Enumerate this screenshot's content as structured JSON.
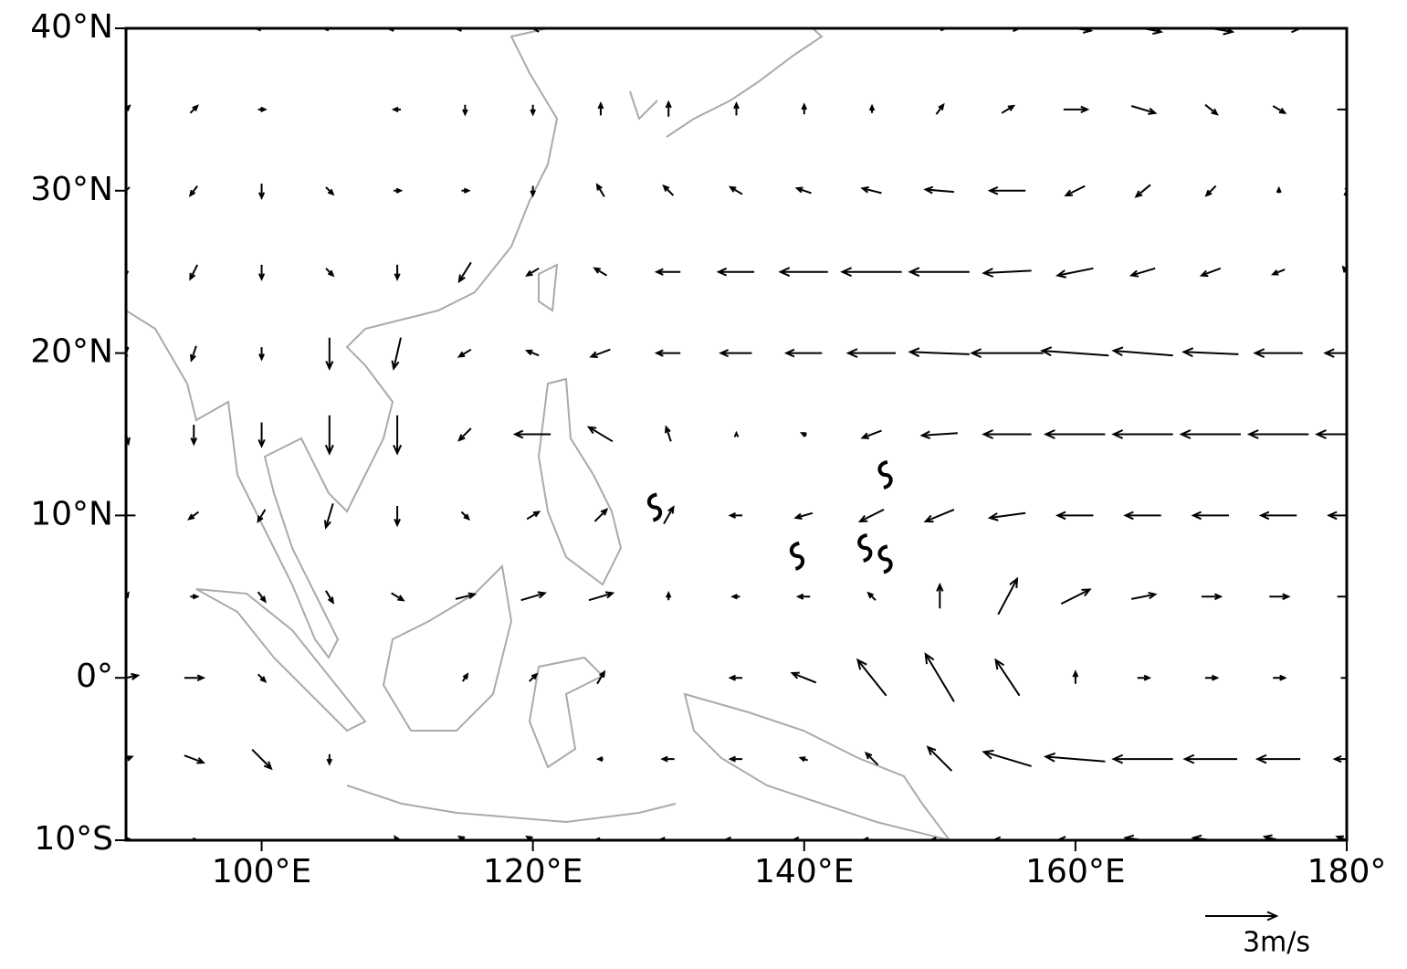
{
  "map": {
    "lat_ticks": [
      {
        "value": 40,
        "label": "40°N"
      },
      {
        "value": 30,
        "label": "30°N"
      },
      {
        "value": 20,
        "label": "20°N"
      },
      {
        "value": 10,
        "label": "10°N"
      },
      {
        "value": 0,
        "label": "0°"
      },
      {
        "value": -10,
        "label": "10°S"
      }
    ],
    "lon_ticks": [
      {
        "value": 100,
        "label": "100°E"
      },
      {
        "value": 120,
        "label": "120°E"
      },
      {
        "value": 140,
        "label": "140°E"
      },
      {
        "value": 160,
        "label": "160°E"
      },
      {
        "value": 180,
        "label": "180°"
      }
    ],
    "lonlim": [
      90,
      180
    ],
    "latlim": [
      -10,
      40
    ],
    "lons": [
      90,
      95,
      100,
      105,
      110,
      115,
      120,
      125,
      130,
      135,
      140,
      145,
      150,
      155,
      160,
      165,
      170,
      175,
      180
    ],
    "lats": [
      40,
      35,
      30,
      25,
      20,
      15,
      10,
      5,
      0,
      -5,
      -10
    ],
    "u": [
      [
        0,
        0,
        -0.5,
        -0.5,
        -0.8,
        -0.8,
        -0.5,
        0,
        0,
        0,
        0,
        0,
        0.5,
        1,
        1.3,
        1.5,
        1.8,
        1.8,
        2
      ],
      [
        0.3,
        0.3,
        0.3,
        0,
        -0.3,
        0,
        0,
        0,
        0,
        0,
        0,
        0,
        0.3,
        0.5,
        1,
        1,
        0.5,
        0.5,
        0.8
      ],
      [
        -0.3,
        -0.3,
        0,
        0.3,
        0.3,
        0.3,
        0,
        -0.3,
        -0.4,
        -0.5,
        -0.6,
        -0.8,
        -1.2,
        -1.5,
        -0.8,
        -0.6,
        -0.4,
        0,
        0.2
      ],
      [
        0,
        -0.3,
        0,
        0.3,
        0,
        -0.5,
        -0.5,
        -0.5,
        -1,
        -1.5,
        -2,
        -2.5,
        -2.5,
        -2,
        -1.5,
        -1,
        -0.8,
        -0.5,
        -0.3
      ],
      [
        -0.2,
        -0.2,
        0,
        0,
        -0.3,
        -0.5,
        -0.5,
        -0.8,
        -1,
        -1.3,
        -1.5,
        -2,
        -2.5,
        -3,
        -2.8,
        -2.5,
        -2.3,
        -2,
        -1.8
      ],
      [
        0.2,
        0,
        0,
        0,
        0,
        -0.5,
        -1.5,
        -1,
        -0.2,
        0,
        -0.2,
        -0.8,
        -1.5,
        -2,
        -2.5,
        -2.5,
        -2.5,
        -2.5,
        -2.5
      ],
      [
        -0.8,
        -0.4,
        -0.3,
        -0.3,
        0,
        0.3,
        0.5,
        0.5,
        0.4,
        -0.5,
        -0.7,
        -1,
        -1.2,
        -1.5,
        -1.5,
        -1.5,
        -1.5,
        -1.5,
        -1.5
      ],
      [
        0.2,
        0.3,
        0.3,
        0.3,
        0.5,
        0.8,
        1,
        1,
        0,
        -0.3,
        -0.5,
        -0.3,
        0,
        0.8,
        1.2,
        1,
        0.8,
        0.8,
        0.8
      ],
      [
        1,
        0.8,
        0.3,
        0,
        0,
        0.2,
        0.3,
        0.3,
        0,
        -0.5,
        -1,
        -1.2,
        -1.2,
        -1,
        0,
        0.5,
        0.5,
        0.5,
        0.5
      ],
      [
        0.5,
        0.8,
        0.8,
        0,
        0,
        0,
        0,
        -0.2,
        -0.5,
        -0.5,
        -0.3,
        -0.5,
        -1,
        -2,
        -2.5,
        -2.5,
        -2.2,
        -1.8,
        -1
      ],
      [
        0.5,
        0.3,
        0,
        0,
        -0.2,
        -0.5,
        -0.5,
        -0.5,
        -0.8,
        -1,
        -1,
        -0.8,
        -0.8,
        -1.2,
        -1.5,
        -1.5,
        -1.5,
        -1.2,
        -0.8
      ]
    ],
    "v": [
      [
        0,
        0,
        0,
        0,
        0,
        0,
        0.3,
        0,
        0,
        0,
        0,
        0,
        0,
        0,
        -0.2,
        -0.3,
        -0.3,
        0,
        0
      ],
      [
        0.3,
        0.3,
        0,
        0,
        0,
        -0.4,
        -0.4,
        0.5,
        0.6,
        0.5,
        0.4,
        0.3,
        0.4,
        0.3,
        0,
        -0.3,
        -0.4,
        -0.3,
        0
      ],
      [
        -0.3,
        -0.4,
        -0.6,
        -0.3,
        0,
        0,
        -0.4,
        0.5,
        0.4,
        0.3,
        0.2,
        0.2,
        0.1,
        0,
        -0.4,
        -0.5,
        -0.4,
        0.2,
        0.4
      ],
      [
        -0.3,
        -0.6,
        -0.6,
        -0.3,
        -0.6,
        -0.8,
        -0.3,
        0.3,
        0,
        0,
        0,
        0,
        0,
        -0.1,
        -0.3,
        -0.3,
        -0.3,
        -0.2,
        0.4
      ],
      [
        -0.5,
        -0.6,
        -0.5,
        -1.3,
        -1.3,
        -0.3,
        0.2,
        -0.3,
        0,
        0,
        0,
        0,
        0.1,
        0,
        0.2,
        0.2,
        0.1,
        0,
        0
      ],
      [
        -0.8,
        -0.8,
        -1,
        -1.6,
        -1.6,
        -0.5,
        0,
        0.6,
        0.6,
        0.1,
        0.1,
        -0.3,
        -0.1,
        0,
        0,
        0,
        0,
        0,
        0
      ],
      [
        0,
        -0.3,
        -0.5,
        -1,
        -0.8,
        -0.3,
        0.3,
        0.5,
        0.7,
        0,
        -0.2,
        -0.5,
        -0.5,
        -0.2,
        0,
        0,
        0,
        0,
        0
      ],
      [
        0.3,
        0,
        -0.4,
        -0.5,
        -0.3,
        0.2,
        0.3,
        0.3,
        0.3,
        0,
        0,
        0.3,
        1,
        1.5,
        0.6,
        0.2,
        0,
        0,
        0
      ],
      [
        0.2,
        0,
        -0.3,
        0,
        0,
        0.3,
        0.3,
        0.5,
        0,
        0,
        0.4,
        1.5,
        2,
        1.5,
        0.5,
        0,
        0,
        0,
        0
      ],
      [
        0.2,
        -0.3,
        -0.8,
        -0.4,
        0,
        0,
        0,
        0,
        0,
        0,
        0.1,
        0.5,
        1,
        0.6,
        0.2,
        0,
        0,
        0,
        0
      ],
      [
        0,
        0,
        0,
        0,
        0.3,
        0.3,
        0.3,
        0,
        0,
        0,
        0,
        0,
        0,
        0,
        0,
        0.2,
        0.2,
        0.3,
        0.3
      ]
    ],
    "typhoon_positions": [
      [
        129,
        10.5
      ],
      [
        139.5,
        7.5
      ],
      [
        144.5,
        8
      ],
      [
        146,
        7.3
      ],
      [
        146,
        12.5
      ]
    ],
    "reference": {
      "speed": 3,
      "label": "3m/s"
    }
  }
}
